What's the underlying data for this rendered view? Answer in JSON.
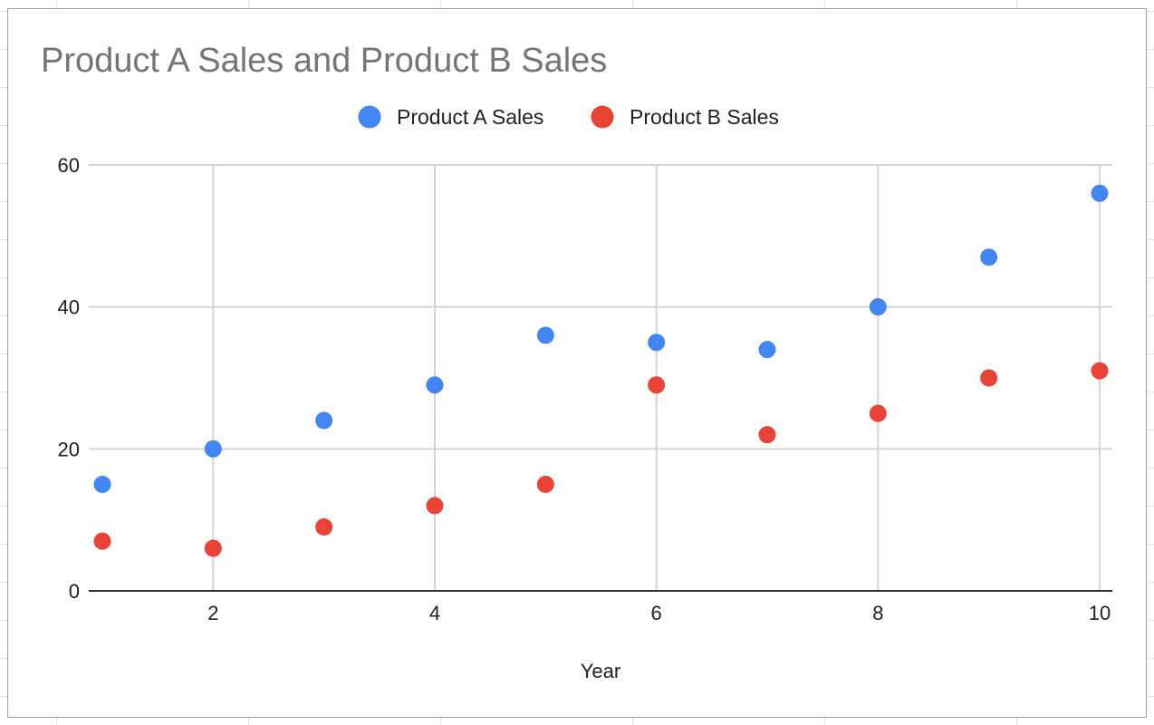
{
  "chart_data": {
    "type": "scatter",
    "title": "Product A Sales and Product B Sales",
    "xlabel": "Year",
    "ylabel": "",
    "xlim": [
      1,
      10
    ],
    "ylim": [
      0,
      60
    ],
    "x_ticks": [
      2,
      4,
      6,
      8,
      10
    ],
    "y_ticks": [
      0,
      20,
      40,
      60
    ],
    "grid": true,
    "legend_position": "top",
    "x": [
      1,
      2,
      3,
      4,
      5,
      6,
      7,
      8,
      9,
      10
    ],
    "series": [
      {
        "name": "Product A Sales",
        "color": "#4285f4",
        "values": [
          15,
          20,
          24,
          29,
          36,
          35,
          34,
          40,
          47,
          56
        ]
      },
      {
        "name": "Product B Sales",
        "color": "#ea4335",
        "values": [
          7,
          6,
          9,
          12,
          15,
          29,
          22,
          25,
          30,
          31
        ]
      }
    ]
  }
}
